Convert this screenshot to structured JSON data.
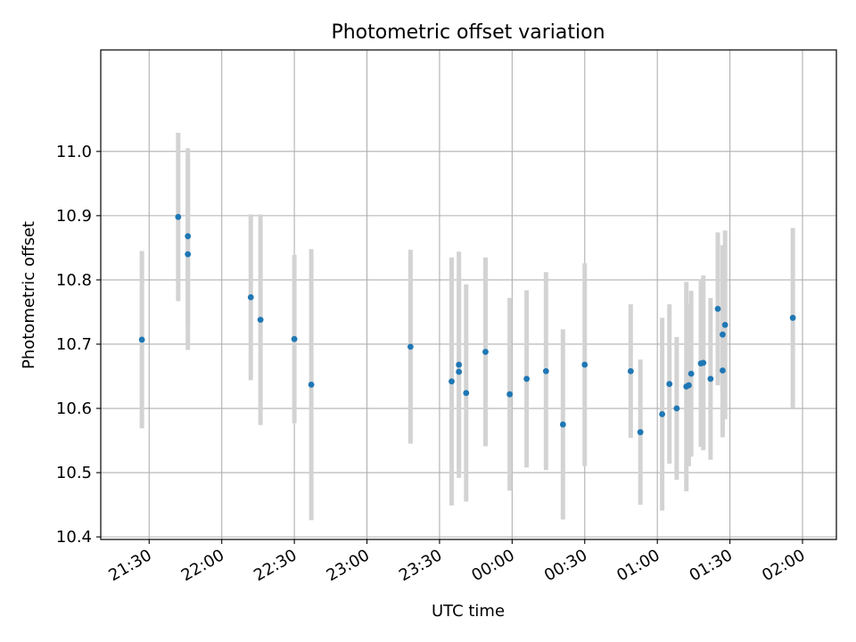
{
  "chart_data": {
    "type": "scatter",
    "title": "Photometric offset variation",
    "xlabel": "UTC time",
    "ylabel": "Photometric offset",
    "grid": true,
    "xlim": [
      "21:10",
      "02:14"
    ],
    "ylim": [
      10.396,
      11.158
    ],
    "x_ticks": [
      "21:30",
      "22:00",
      "22:30",
      "23:00",
      "23:30",
      "00:00",
      "00:30",
      "01:00",
      "01:30",
      "02:00"
    ],
    "y_ticks": [
      10.4,
      10.5,
      10.6,
      10.7,
      10.8,
      10.9,
      11.0
    ],
    "y_tick_labels": [
      "10.4",
      "10.5",
      "10.6",
      "10.7",
      "10.8",
      "10.9",
      "11.0"
    ],
    "marker_color": "#1f77b4",
    "errorbar_color": "#d3d3d3",
    "points": [
      {
        "x": "21:27",
        "y": 10.707,
        "err": 0.138
      },
      {
        "x": "21:42",
        "y": 10.898,
        "err": 0.131
      },
      {
        "x": "21:46",
        "y": 10.868,
        "err": 0.137
      },
      {
        "x": "21:46",
        "y": 10.84,
        "err": 0.149
      },
      {
        "x": "22:12",
        "y": 10.773,
        "err": 0.129
      },
      {
        "x": "22:16",
        "y": 10.738,
        "err": 0.164
      },
      {
        "x": "22:30",
        "y": 10.708,
        "err": 0.131
      },
      {
        "x": "22:37",
        "y": 10.637,
        "err": 0.211
      },
      {
        "x": "23:18",
        "y": 10.696,
        "err": 0.151
      },
      {
        "x": "23:35",
        "y": 10.642,
        "err": 0.193
      },
      {
        "x": "23:38",
        "y": 10.657,
        "err": 0.15
      },
      {
        "x": "23:38",
        "y": 10.668,
        "err": 0.176
      },
      {
        "x": "23:41",
        "y": 10.624,
        "err": 0.169
      },
      {
        "x": "23:49",
        "y": 10.688,
        "err": 0.147
      },
      {
        "x": "23:59",
        "y": 10.622,
        "err": 0.15
      },
      {
        "x": "00:06",
        "y": 10.646,
        "err": 0.138
      },
      {
        "x": "00:14",
        "y": 10.658,
        "err": 0.154
      },
      {
        "x": "00:21",
        "y": 10.575,
        "err": 0.148
      },
      {
        "x": "00:30",
        "y": 10.668,
        "err": 0.158
      },
      {
        "x": "00:49",
        "y": 10.658,
        "err": 0.104
      },
      {
        "x": "00:53",
        "y": 10.563,
        "err": 0.113
      },
      {
        "x": "01:02",
        "y": 10.591,
        "err": 0.15
      },
      {
        "x": "01:05",
        "y": 10.638,
        "err": 0.124
      },
      {
        "x": "01:08",
        "y": 10.6,
        "err": 0.111
      },
      {
        "x": "01:12",
        "y": 10.634,
        "err": 0.163
      },
      {
        "x": "01:13",
        "y": 10.636,
        "err": 0.126
      },
      {
        "x": "01:14",
        "y": 10.654,
        "err": 0.129
      },
      {
        "x": "01:18",
        "y": 10.67,
        "err": 0.13
      },
      {
        "x": "01:19",
        "y": 10.671,
        "err": 0.136
      },
      {
        "x": "01:22",
        "y": 10.646,
        "err": 0.126
      },
      {
        "x": "01:25",
        "y": 10.755,
        "err": 0.119
      },
      {
        "x": "01:27",
        "y": 10.659,
        "err": 0.104
      },
      {
        "x": "01:27",
        "y": 10.715,
        "err": 0.139
      },
      {
        "x": "01:28",
        "y": 10.73,
        "err": 0.147
      },
      {
        "x": "01:56",
        "y": 10.741,
        "err": 0.14
      }
    ]
  }
}
